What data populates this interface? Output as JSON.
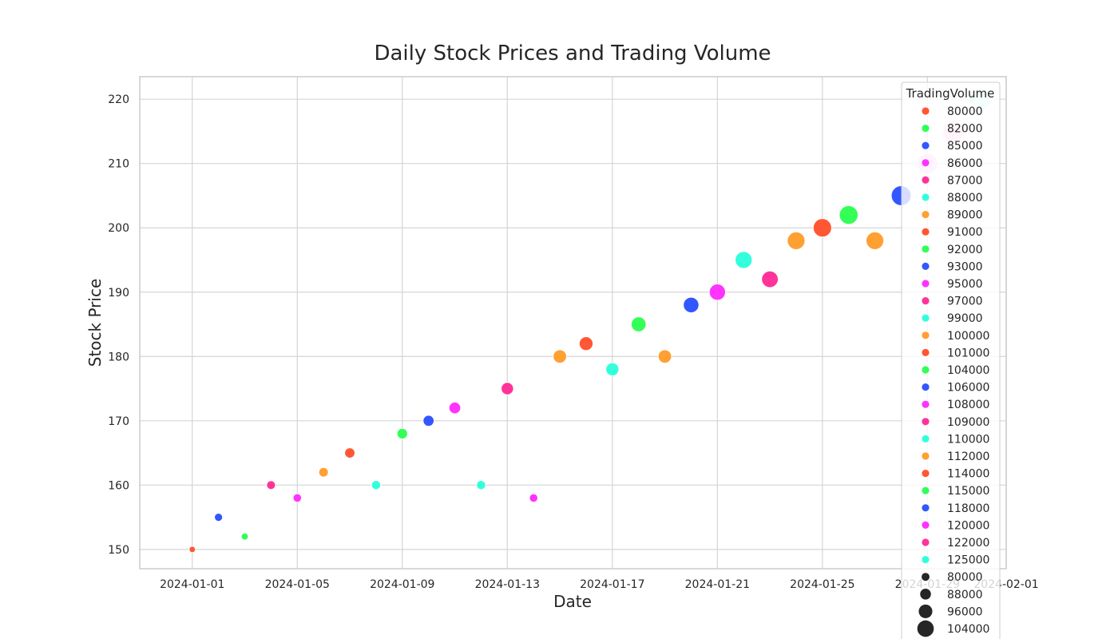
{
  "chart_data": {
    "type": "scatter",
    "title": "Daily Stock Prices and Trading Volume",
    "xlabel": "Date",
    "ylabel": "Stock Price",
    "xlim": [
      "2023-12-30",
      "2024-02-01"
    ],
    "ylim": [
      147,
      223.5
    ],
    "x_ticks": [
      "2024-01-01",
      "2024-01-05",
      "2024-01-09",
      "2024-01-13",
      "2024-01-17",
      "2024-01-21",
      "2024-01-25",
      "2024-01-29",
      "2024-02-01"
    ],
    "y_ticks": [
      150,
      160,
      170,
      180,
      190,
      200,
      210,
      220
    ],
    "grid": true,
    "legend_placement": "top-right",
    "legend_title": "TradingVolume",
    "points": [
      {
        "date": "2024-01-01",
        "price": 150,
        "volume": 80000
      },
      {
        "date": "2024-01-02",
        "price": 155,
        "volume": 85000
      },
      {
        "date": "2024-01-03",
        "price": 152,
        "volume": 82000
      },
      {
        "date": "2024-01-04",
        "price": 160,
        "volume": 87000
      },
      {
        "date": "2024-01-05",
        "price": 158,
        "volume": 86000
      },
      {
        "date": "2024-01-06",
        "price": 162,
        "volume": 89000
      },
      {
        "date": "2024-01-07",
        "price": 165,
        "volume": 91000
      },
      {
        "date": "2024-01-08",
        "price": 160,
        "volume": 88000
      },
      {
        "date": "2024-01-09",
        "price": 168,
        "volume": 92000
      },
      {
        "date": "2024-01-10",
        "price": 170,
        "volume": 93000
      },
      {
        "date": "2024-01-11",
        "price": 172,
        "volume": 95000
      },
      {
        "date": "2024-01-12",
        "price": 160,
        "volume": 88000
      },
      {
        "date": "2024-01-13",
        "price": 175,
        "volume": 97000
      },
      {
        "date": "2024-01-14",
        "price": 158,
        "volume": 86000
      },
      {
        "date": "2024-01-15",
        "price": 180,
        "volume": 100000
      },
      {
        "date": "2024-01-16",
        "price": 182,
        "volume": 101000
      },
      {
        "date": "2024-01-17",
        "price": 178,
        "volume": 99000
      },
      {
        "date": "2024-01-18",
        "price": 185,
        "volume": 104000
      },
      {
        "date": "2024-01-19",
        "price": 180,
        "volume": 100000
      },
      {
        "date": "2024-01-20",
        "price": 188,
        "volume": 106000
      },
      {
        "date": "2024-01-21",
        "price": 190,
        "volume": 108000
      },
      {
        "date": "2024-01-22",
        "price": 195,
        "volume": 110000
      },
      {
        "date": "2024-01-23",
        "price": 192,
        "volume": 109000
      },
      {
        "date": "2024-01-24",
        "price": 198,
        "volume": 112000
      },
      {
        "date": "2024-01-25",
        "price": 200,
        "volume": 114000
      },
      {
        "date": "2024-01-26",
        "price": 202,
        "volume": 115000
      },
      {
        "date": "2024-01-27",
        "price": 198,
        "volume": 112000
      },
      {
        "date": "2024-01-28",
        "price": 205,
        "volume": 118000
      },
      {
        "date": "2024-01-29",
        "price": 210,
        "volume": 120000
      },
      {
        "date": "2024-01-30",
        "price": 215,
        "volume": 122000
      },
      {
        "date": "2024-01-31",
        "price": 220,
        "volume": 125000
      }
    ],
    "hue_legend": [
      {
        "label": "80000",
        "color": "#ff5733"
      },
      {
        "label": "82000",
        "color": "#33ff57"
      },
      {
        "label": "85000",
        "color": "#3357ff"
      },
      {
        "label": "86000",
        "color": "#ff33ff"
      },
      {
        "label": "87000",
        "color": "#ff3399"
      },
      {
        "label": "88000",
        "color": "#33ffdd"
      },
      {
        "label": "89000",
        "color": "#ffa033"
      },
      {
        "label": "91000",
        "color": "#ff5733"
      },
      {
        "label": "92000",
        "color": "#33ff57"
      },
      {
        "label": "93000",
        "color": "#3357ff"
      },
      {
        "label": "95000",
        "color": "#ff33ff"
      },
      {
        "label": "97000",
        "color": "#ff3399"
      },
      {
        "label": "99000",
        "color": "#33ffdd"
      },
      {
        "label": "100000",
        "color": "#ffa033"
      },
      {
        "label": "101000",
        "color": "#ff5733"
      },
      {
        "label": "104000",
        "color": "#33ff57"
      },
      {
        "label": "106000",
        "color": "#3357ff"
      },
      {
        "label": "108000",
        "color": "#ff33ff"
      },
      {
        "label": "109000",
        "color": "#ff3399"
      },
      {
        "label": "110000",
        "color": "#33ffdd"
      },
      {
        "label": "112000",
        "color": "#ffa033"
      },
      {
        "label": "114000",
        "color": "#ff5733"
      },
      {
        "label": "115000",
        "color": "#33ff57"
      },
      {
        "label": "118000",
        "color": "#3357ff"
      },
      {
        "label": "120000",
        "color": "#ff33ff"
      },
      {
        "label": "122000",
        "color": "#ff3399"
      },
      {
        "label": "125000",
        "color": "#33ffdd"
      }
    ],
    "size_legend": [
      {
        "label": "80000",
        "volume": 80000
      },
      {
        "label": "88000",
        "volume": 88000
      },
      {
        "label": "96000",
        "volume": 96000
      },
      {
        "label": "104000",
        "volume": 104000
      }
    ],
    "extra_colors": {
      "120000": "#f7c6f7",
      "122000": "#fcc6e6",
      "125000": "#c6fdf3"
    },
    "colors": {
      "grid": "#d5d5d5",
      "axis_frame": "#cccccc",
      "size_legend_marker": "#262626"
    }
  }
}
